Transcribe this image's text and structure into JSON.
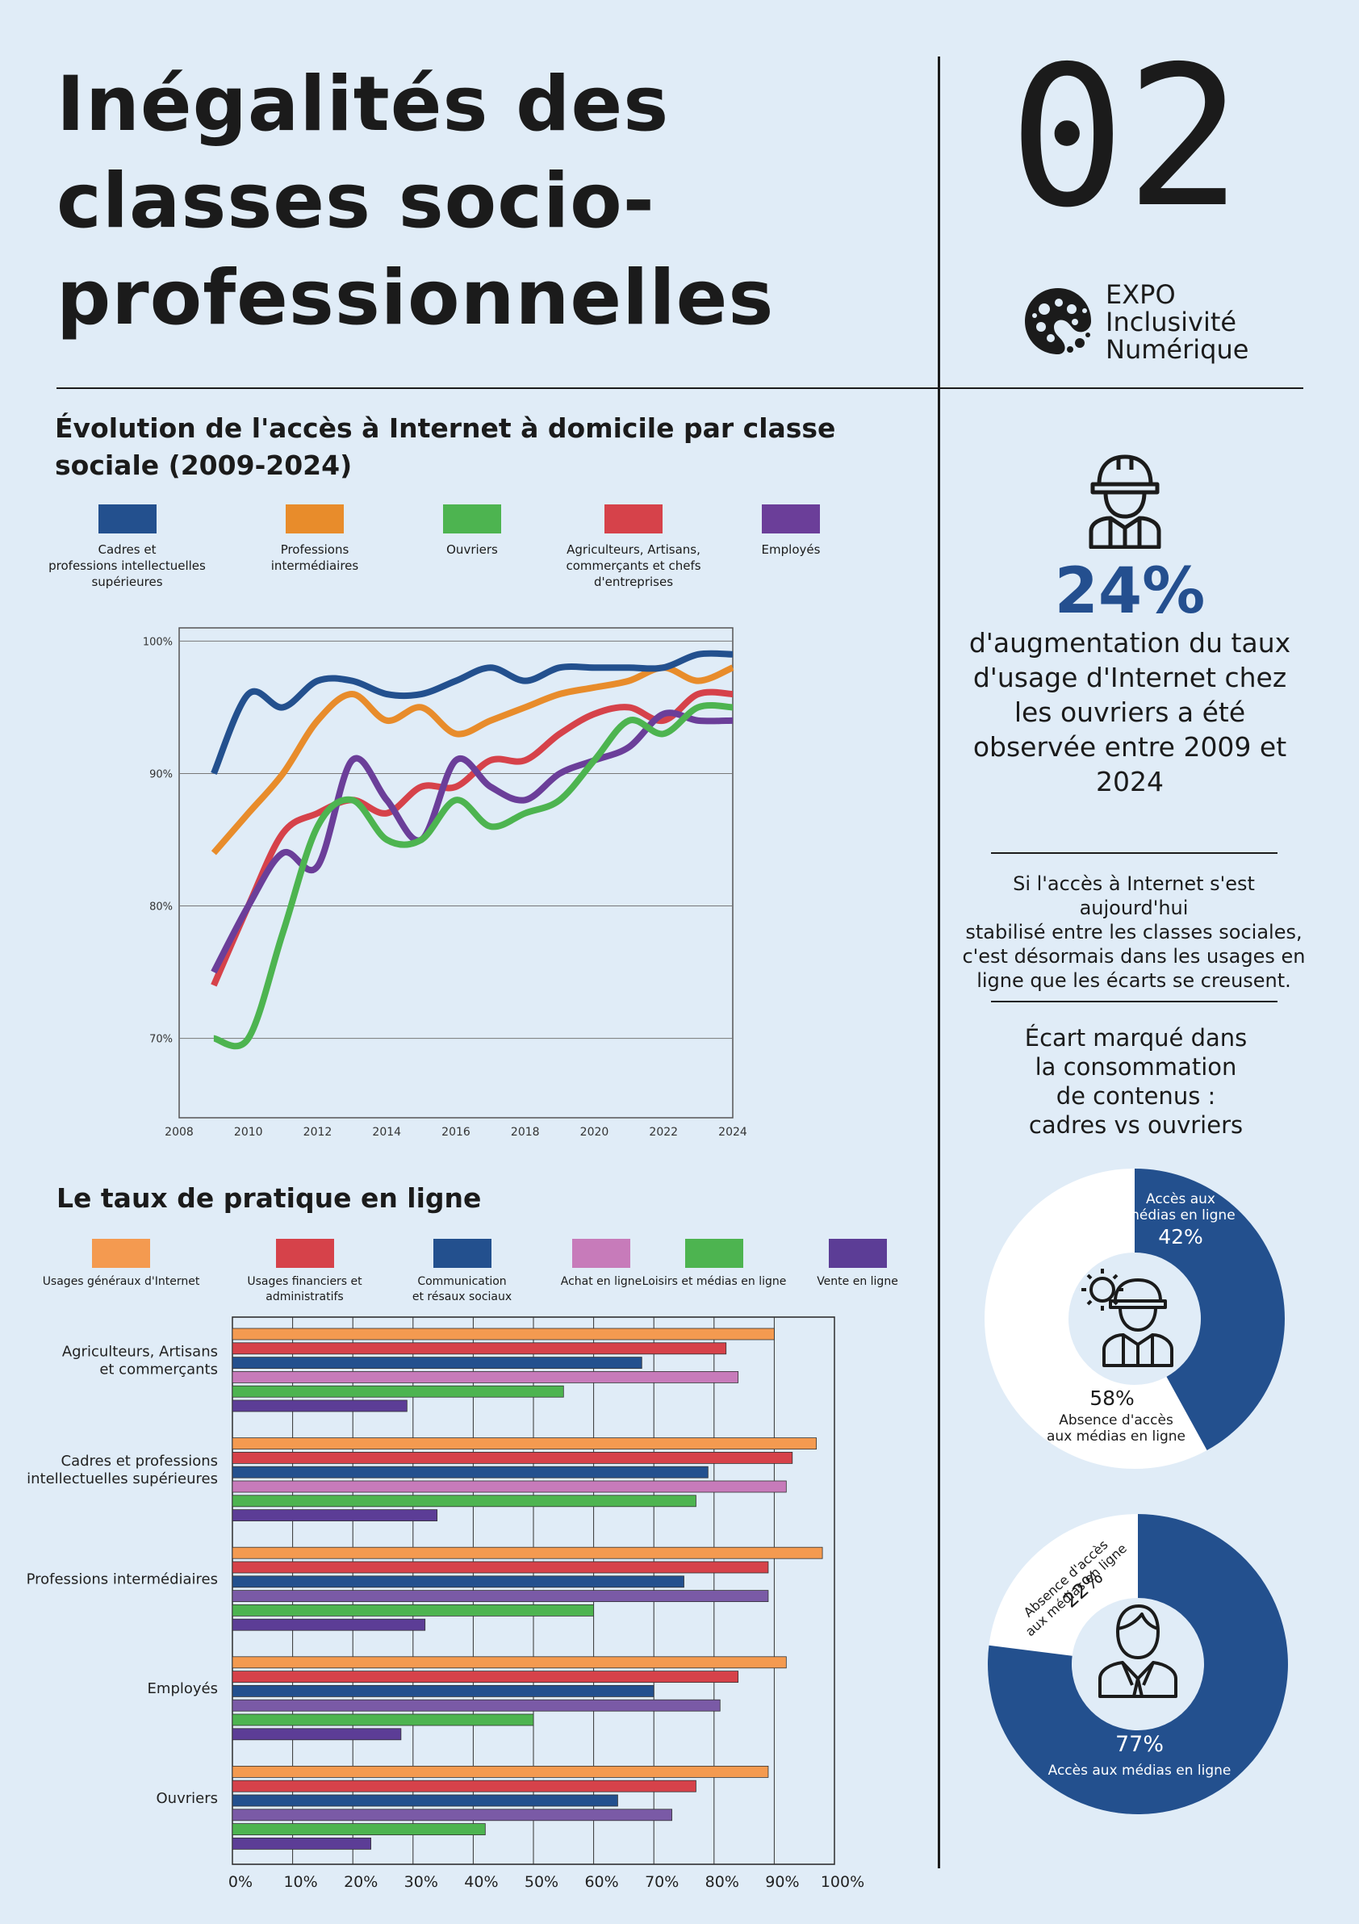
{
  "header": {
    "title_lines": [
      "Inégalités des",
      "classes socio-",
      "professionnelles"
    ],
    "number": "02",
    "logo_lines": [
      "EXPO",
      "Inclusivité",
      "Numérique"
    ]
  },
  "line_chart": {
    "title_lines": [
      "Évolution de l'accès à Internet à domicile par classe",
      "sociale (2009-2024)"
    ],
    "legend": [
      {
        "label_lines": [
          "Cadres et",
          "professions intellectuelles",
          "supérieures"
        ],
        "color": "#23508e"
      },
      {
        "label_lines": [
          "Professions",
          "intermédiaires"
        ],
        "color": "#e88c2b"
      },
      {
        "label_lines": [
          "Ouvriers"
        ],
        "color": "#4db450"
      },
      {
        "label_lines": [
          "Agriculteurs, Artisans,",
          "commerçants et chefs",
          "d'entreprises"
        ],
        "color": "#d6424a"
      },
      {
        "label_lines": [
          "Employés"
        ],
        "color": "#6b3e99"
      }
    ]
  },
  "bar_chart": {
    "title": "Le taux de pratique en ligne",
    "legend": [
      {
        "label_lines": [
          "Usages généraux d'Internet"
        ],
        "color": "#f49a50"
      },
      {
        "label_lines": [
          "Usages financiers et",
          "administratifs"
        ],
        "color": "#d6424a"
      },
      {
        "label_lines": [
          "Communication",
          "et résaux sociaux"
        ],
        "color": "#23508e"
      },
      {
        "label_lines": [
          "Achat en ligne"
        ],
        "color": "#c77bba"
      },
      {
        "label_lines": [
          "Loisirs et médias en ligne"
        ],
        "color": "#4db450"
      },
      {
        "label_lines": [
          "Vente en ligne"
        ],
        "color": "#5c3d96"
      }
    ]
  },
  "sidebar": {
    "stat_value": "24%",
    "stat_text_lines": [
      "d'augmentation du taux",
      "d'usage d'Internet chez",
      "les ouvriers a été",
      "observée entre 2009 et",
      "2024"
    ],
    "paragraph_lines": [
      "Si l'accès à Internet s'est aujourd'hui",
      "stabilisé entre les classes sociales,",
      "c'est désormais dans les usages en",
      "ligne que les écarts se creusent."
    ],
    "ecart_lines": [
      "Écart marqué dans",
      "la consommation",
      "de contenus  :",
      "cadres vs ouvriers"
    ],
    "donut_workers": {
      "access_pct": 42,
      "access_value": "42%",
      "access_label_lines": [
        "Accès aux",
        "médias en ligne"
      ],
      "no_access_value": "58%",
      "no_access_label_lines": [
        "Absence d'accès",
        "aux médias en ligne"
      ],
      "access_color": "#23508e"
    },
    "donut_executives": {
      "access_pct": 77,
      "access_value": "77%",
      "access_label": "Accès aux médias en ligne",
      "no_access_value": "22%",
      "no_access_label_lines": [
        "Absence d'accès",
        "aux médias en ligne"
      ],
      "access_color": "#23508e"
    }
  },
  "chart_data": [
    {
      "type": "line",
      "title": "Évolution de l'accès à Internet à domicile par classe sociale (2009-2024)",
      "x": [
        2009,
        2010,
        2011,
        2012,
        2013,
        2014,
        2015,
        2016,
        2017,
        2018,
        2019,
        2020,
        2021,
        2022,
        2023,
        2024
      ],
      "series": [
        {
          "name": "Cadres et professions intellectuelles supérieures",
          "values": [
            90,
            96,
            95,
            97,
            97,
            96,
            96,
            97,
            98,
            97,
            98,
            98,
            98,
            98,
            99,
            99
          ]
        },
        {
          "name": "Professions intermédiaires",
          "values": [
            84,
            87,
            90,
            94,
            96,
            94,
            95,
            93,
            94,
            95,
            96,
            96.5,
            97,
            98,
            97,
            98
          ]
        },
        {
          "name": "Ouvriers",
          "values": [
            70,
            70,
            78,
            86,
            88,
            85,
            85,
            88,
            86,
            87,
            88,
            91,
            94,
            93,
            95,
            95
          ]
        },
        {
          "name": "Agriculteurs, Artisans, commerçants et chefs d'entreprises",
          "values": [
            74,
            80,
            85.5,
            87,
            88,
            87,
            89,
            89,
            91,
            91,
            93,
            94.5,
            95,
            94,
            96,
            96
          ]
        },
        {
          "name": "Employés",
          "values": [
            75,
            80,
            84,
            83,
            91,
            88,
            85,
            91,
            89,
            88,
            90,
            91,
            92,
            94.5,
            94,
            94
          ]
        }
      ],
      "xlim": [
        2008,
        2024
      ],
      "ylim": [
        64,
        101
      ],
      "x_ticks": [
        "2008",
        "2010",
        "2012",
        "2014",
        "2016",
        "2018",
        "2020",
        "2022",
        "2024"
      ],
      "y_ticks": [
        "70%",
        "80%",
        "90%",
        "100%"
      ],
      "y_tick_values": [
        70,
        80,
        90,
        100
      ],
      "grid": "horizontal"
    },
    {
      "type": "bar",
      "orientation": "horizontal",
      "title": "Le taux de pratique en ligne",
      "categories": [
        "Agriculteurs, Artisans et commerçants",
        "Cadres et professions intellectuelles supérieures",
        "Professions intermédiaires",
        "Employés",
        "Ouvriers"
      ],
      "category_label_lines": [
        [
          "Agriculteurs, Artisans",
          "et commerçants"
        ],
        [
          "Cadres et professions",
          "intellectuelles supérieures"
        ],
        [
          "Professions intermédiaires"
        ],
        [
          "Employés"
        ],
        [
          "Ouvriers"
        ]
      ],
      "series": [
        {
          "name": "Usages généraux d'Internet",
          "values": [
            90,
            97,
            98,
            92,
            89
          ]
        },
        {
          "name": "Usages financiers et administratifs",
          "values": [
            82,
            93,
            89,
            84,
            77
          ]
        },
        {
          "name": "Communication et résaux sociaux",
          "values": [
            68,
            79,
            75,
            70,
            64
          ]
        },
        {
          "name": "Achat en ligne",
          "values": [
            84,
            92,
            89,
            81,
            73
          ]
        },
        {
          "name": "Loisirs et médias en ligne",
          "values": [
            55,
            77,
            60,
            50,
            42
          ]
        },
        {
          "name": "Vente en ligne",
          "values": [
            29,
            34,
            32,
            28,
            23
          ]
        }
      ],
      "series_colors": [
        "#f49a50",
        "#d6424a",
        "#23508e",
        "#c77bba",
        "#4db450",
        "#5c3d96"
      ],
      "bar_colors_override": {
        "2": {
          "3": "#7a5aa6"
        },
        "3": {
          "3": "#7a5aa6"
        },
        "4": {
          "3": "#7a5aa6"
        }
      },
      "xlim": [
        0,
        100
      ],
      "x_ticks": [
        "0%",
        "10%",
        "20%",
        "30%",
        "40%",
        "50%",
        "60%",
        "70%",
        "80%",
        "90%",
        "100%"
      ]
    },
    {
      "type": "pie",
      "title": "Ouvriers",
      "labels": [
        "Accès aux médias en ligne",
        "Absence d'accès aux médias en ligne"
      ],
      "values": [
        42,
        58
      ]
    },
    {
      "type": "pie",
      "title": "Cadres",
      "labels": [
        "Accès aux médias en ligne",
        "Absence d'accès aux médias en ligne"
      ],
      "values": [
        77,
        22
      ]
    }
  ]
}
